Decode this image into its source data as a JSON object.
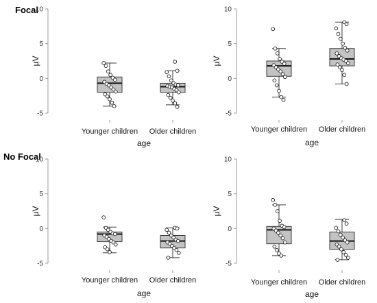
{
  "row_labels": [
    "Focal",
    "No Focal"
  ],
  "chart_data": [
    {
      "type": "box",
      "row": "Focal",
      "categories": [
        "Younger children",
        "Older children"
      ],
      "xlabel": "age",
      "ylabel": "µV",
      "ylim": [
        -5,
        10
      ],
      "yticks": [
        -5,
        0,
        5,
        10
      ],
      "boxes": [
        {
          "category": "Younger children",
          "whisker_low": -4.0,
          "q1": -2.0,
          "median": -0.7,
          "q3": 0.2,
          "whisker_high": 2.2
        },
        {
          "category": "Older children",
          "whisker_low": -3.8,
          "q1": -2.0,
          "median": -1.2,
          "q3": -0.7,
          "whisker_high": 1.1
        }
      ],
      "points": [
        [
          2.2,
          1.8,
          1.0,
          0.5,
          0.1,
          -0.2,
          -0.5,
          -0.8,
          -1.0,
          -1.3,
          -1.6,
          -1.9,
          -2.3,
          -2.6,
          -3.0,
          -3.5,
          -4.0
        ],
        [
          2.4,
          1.1,
          0.9,
          0.3,
          -0.3,
          -0.7,
          -0.9,
          -1.0,
          -1.1,
          -1.2,
          -1.3,
          -1.5,
          -1.7,
          -2.0,
          -2.4,
          -2.8,
          -3.2,
          -3.6,
          -4.1
        ]
      ]
    },
    {
      "type": "box",
      "row": "Focal",
      "categories": [
        "Younger children",
        "Older children"
      ],
      "xlabel": "age",
      "ylabel": "µV",
      "ylim": [
        -5,
        10
      ],
      "yticks": [
        -5,
        0,
        5,
        10
      ],
      "boxes": [
        {
          "category": "Younger children",
          "whisker_low": -2.7,
          "q1": 0.3,
          "median": 1.8,
          "q3": 2.5,
          "whisker_high": 4.3
        },
        {
          "category": "Older children",
          "whisker_low": -0.8,
          "q1": 1.8,
          "median": 2.8,
          "q3": 4.3,
          "whisker_high": 8.1
        }
      ],
      "points": [
        [
          7.1,
          4.3,
          3.6,
          2.8,
          2.4,
          2.1,
          1.9,
          1.6,
          1.3,
          1.0,
          0.6,
          0.2,
          -0.3,
          -1.0,
          -1.8,
          -2.7,
          -3.1
        ],
        [
          8.1,
          7.8,
          7.2,
          6.4,
          5.7,
          5.0,
          4.4,
          4.0,
          3.6,
          3.2,
          2.9,
          2.7,
          2.5,
          2.2,
          2.0,
          1.6,
          1.2,
          0.5,
          -0.8
        ]
      ]
    },
    {
      "type": "box",
      "row": "No Focal",
      "categories": [
        "Younger children",
        "Older children"
      ],
      "xlabel": "age",
      "ylabel": "µV",
      "ylim": [
        -5,
        10
      ],
      "yticks": [
        -5,
        0,
        5,
        10
      ],
      "boxes": [
        {
          "category": "Younger children",
          "whisker_low": -3.5,
          "q1": -1.9,
          "median": -0.8,
          "q3": -0.5,
          "whisker_high": 0.2
        },
        {
          "category": "Older children",
          "whisker_low": -4.2,
          "q1": -2.8,
          "median": -1.8,
          "q3": -1.0,
          "whisker_high": 0.1
        }
      ],
      "points": [
        [
          1.6,
          0.1,
          -0.2,
          -0.5,
          -0.7,
          -0.8,
          -1.0,
          -1.2,
          -1.5,
          -1.8,
          -2.0,
          -2.3,
          -2.7,
          -3.0,
          -3.4
        ],
        [
          0.1,
          0.0,
          -0.2,
          -0.6,
          -1.0,
          -1.3,
          -1.6,
          -1.8,
          -2.0,
          -2.2,
          -2.5,
          -2.8,
          -3.1,
          -3.5,
          -4.2
        ]
      ]
    },
    {
      "type": "box",
      "row": "No Focal",
      "categories": [
        "Younger children",
        "Older children"
      ],
      "xlabel": "age",
      "ylabel": "µV",
      "ylim": [
        -5,
        10
      ],
      "yticks": [
        -5,
        0,
        5,
        10
      ],
      "boxes": [
        {
          "category": "Younger children",
          "whisker_low": -3.9,
          "q1": -2.2,
          "median": -0.2,
          "q3": 0.3,
          "whisker_high": 3.4
        },
        {
          "category": "Older children",
          "whisker_low": -4.5,
          "q1": -3.0,
          "median": -1.8,
          "q3": -0.5,
          "whisker_high": 1.3
        }
      ],
      "points": [
        [
          4.1,
          3.4,
          2.5,
          1.1,
          0.4,
          0.2,
          0.0,
          -0.3,
          -0.6,
          -1.0,
          -1.4,
          -2.0,
          -2.6,
          -3.1,
          -3.6,
          -3.9
        ],
        [
          1.2,
          0.7,
          0.1,
          -0.4,
          -0.9,
          -1.3,
          -1.7,
          -2.0,
          -2.3,
          -2.6,
          -3.0,
          -3.4,
          -3.8,
          -4.2,
          -4.5
        ]
      ]
    }
  ],
  "colors": {
    "box_fill": "#c3c3c3",
    "box_stroke": "#3a3a3a",
    "axis": "#999999",
    "point_stroke": "#222222",
    "point_fill": "#ffffff"
  }
}
